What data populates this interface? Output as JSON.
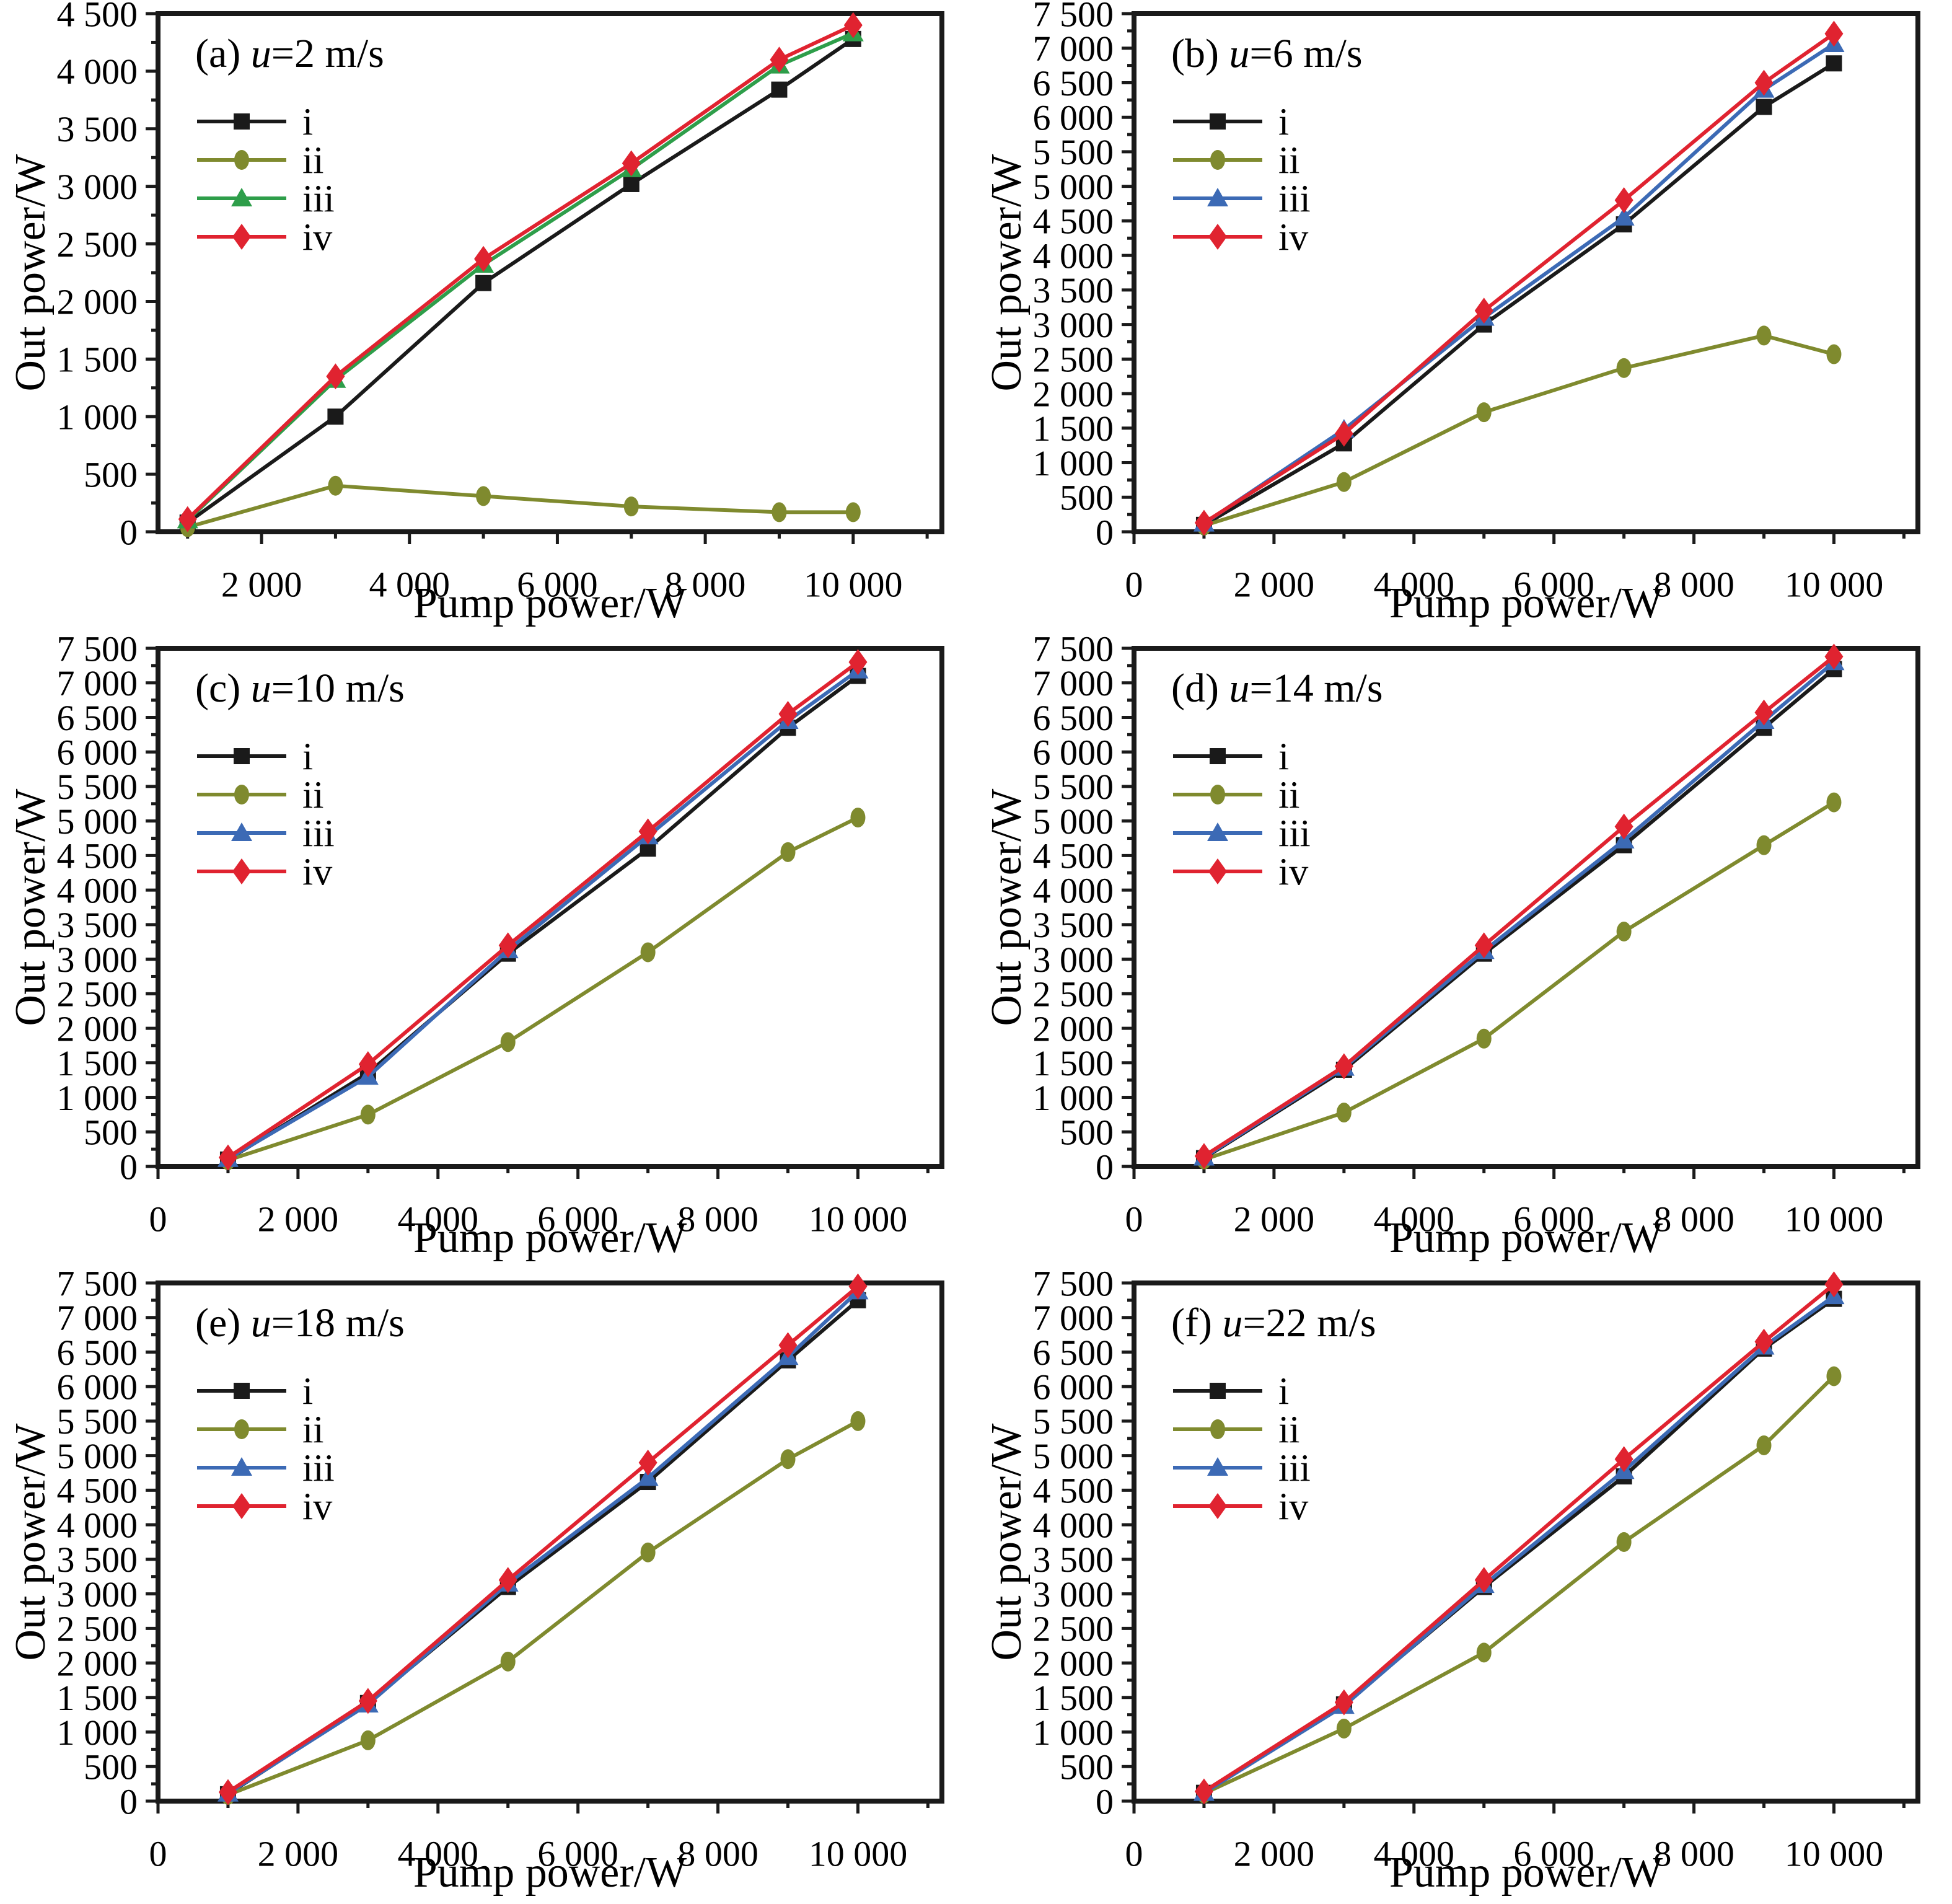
{
  "chart_data": {
    "type": "line",
    "x_label": "Pump power/W",
    "y_label": "Out power/W",
    "x_values": [
      1000,
      3000,
      5000,
      7000,
      9000,
      10000
    ],
    "x_major_tick_step": 2000,
    "x_minor_tick_step": 1000,
    "legend_labels": [
      "i",
      "ii",
      "iii",
      "iv"
    ],
    "grid": false,
    "legend_position": "top-left-inside",
    "panels": [
      {
        "id": "a",
        "label": "(a)",
        "u_var": "u",
        "u_rest": "=2 m/s",
        "y_max": 4500,
        "y_label_step": 500,
        "y_minor_step": 250,
        "x_min": 600,
        "x_max": 11200,
        "show_x_zero": false,
        "series": [
          {
            "name": "i",
            "marker": "square",
            "color": "#1a1a1a",
            "values": [
              80,
              1000,
              2160,
              3020,
              3840,
              4280
            ]
          },
          {
            "name": "ii",
            "marker": "ellipse",
            "color": "#7f8a2e",
            "values": [
              40,
              400,
              310,
              220,
              170,
              170
            ]
          },
          {
            "name": "iii",
            "marker": "triangle",
            "color": "#2e9e4a",
            "values": [
              100,
              1320,
              2320,
              3150,
              4050,
              4330
            ]
          },
          {
            "name": "iv",
            "marker": "diamond",
            "color": "#e02330",
            "values": [
              110,
              1350,
              2370,
              3200,
              4100,
              4400
            ]
          }
        ]
      },
      {
        "id": "b",
        "label": "(b)",
        "u_var": "u",
        "u_rest": "=6 m/s",
        "y_max": 7500,
        "y_label_step": 500,
        "y_minor_step": 250,
        "x_min": 0,
        "x_max": 11200,
        "show_x_zero": true,
        "series": [
          {
            "name": "i",
            "marker": "square",
            "color": "#1a1a1a",
            "values": [
              100,
              1280,
              3000,
              4450,
              6150,
              6780
            ]
          },
          {
            "name": "ii",
            "marker": "ellipse",
            "color": "#7f8a2e",
            "values": [
              90,
              720,
              1730,
              2370,
              2840,
              2570
            ]
          },
          {
            "name": "iii",
            "marker": "triangle",
            "color": "#3c6ab5",
            "values": [
              120,
              1480,
              3100,
              4550,
              6400,
              7060
            ]
          },
          {
            "name": "iv",
            "marker": "diamond",
            "color": "#e02330",
            "values": [
              130,
              1420,
              3200,
              4800,
              6500,
              7210
            ]
          }
        ]
      },
      {
        "id": "c",
        "label": "(c)",
        "u_var": "u",
        "u_rest": "=10 m/s",
        "y_max": 7500,
        "y_label_step": 500,
        "y_minor_step": 250,
        "x_min": 0,
        "x_max": 11200,
        "show_x_zero": true,
        "series": [
          {
            "name": "i",
            "marker": "square",
            "color": "#1a1a1a",
            "values": [
              100,
              1350,
              3080,
              4600,
              6350,
              7100
            ]
          },
          {
            "name": "ii",
            "marker": "ellipse",
            "color": "#7f8a2e",
            "values": [
              90,
              750,
              1800,
              3100,
              4550,
              5050
            ]
          },
          {
            "name": "iii",
            "marker": "triangle",
            "color": "#3c6ab5",
            "values": [
              110,
              1300,
              3130,
              4780,
              6450,
              7180
            ]
          },
          {
            "name": "iv",
            "marker": "diamond",
            "color": "#e02330",
            "values": [
              130,
              1480,
              3200,
              4850,
              6550,
              7300
            ]
          }
        ]
      },
      {
        "id": "d",
        "label": "(d)",
        "u_var": "u",
        "u_rest": "=14 m/s",
        "y_max": 7500,
        "y_label_step": 500,
        "y_minor_step": 250,
        "x_min": 0,
        "x_max": 11200,
        "show_x_zero": true,
        "series": [
          {
            "name": "i",
            "marker": "square",
            "color": "#1a1a1a",
            "values": [
              120,
              1400,
              3080,
              4650,
              6350,
              7200
            ]
          },
          {
            "name": "ii",
            "marker": "ellipse",
            "color": "#7f8a2e",
            "values": [
              100,
              780,
              1850,
              3400,
              4650,
              5270
            ]
          },
          {
            "name": "iii",
            "marker": "triangle",
            "color": "#3c6ab5",
            "values": [
              130,
              1430,
              3120,
              4720,
              6450,
              7300
            ]
          },
          {
            "name": "iv",
            "marker": "diamond",
            "color": "#e02330",
            "values": [
              150,
              1450,
              3200,
              4920,
              6570,
              7380
            ]
          }
        ]
      },
      {
        "id": "e",
        "label": "(e)",
        "u_var": "u",
        "u_rest": "=18 m/s",
        "y_max": 7500,
        "y_label_step": 500,
        "y_minor_step": 250,
        "x_min": 0,
        "x_max": 11200,
        "show_x_zero": true,
        "series": [
          {
            "name": "i",
            "marker": "square",
            "color": "#1a1a1a",
            "values": [
              100,
              1420,
              3100,
              4620,
              6380,
              7250
            ]
          },
          {
            "name": "ii",
            "marker": "ellipse",
            "color": "#7f8a2e",
            "values": [
              90,
              880,
              2020,
              3600,
              4950,
              5500
            ]
          },
          {
            "name": "iii",
            "marker": "triangle",
            "color": "#3c6ab5",
            "values": [
              110,
              1400,
              3150,
              4680,
              6430,
              7380
            ]
          },
          {
            "name": "iv",
            "marker": "diamond",
            "color": "#e02330",
            "values": [
              130,
              1450,
              3200,
              4900,
              6600,
              7450
            ]
          }
        ]
      },
      {
        "id": "f",
        "label": "(f)",
        "u_var": "u",
        "u_rest": "=22 m/s",
        "y_max": 7500,
        "y_label_step": 500,
        "y_minor_step": 250,
        "x_min": 0,
        "x_max": 11200,
        "show_x_zero": true,
        "series": [
          {
            "name": "i",
            "marker": "square",
            "color": "#1a1a1a",
            "values": [
              120,
              1400,
              3100,
              4700,
              6550,
              7270
            ]
          },
          {
            "name": "ii",
            "marker": "ellipse",
            "color": "#7f8a2e",
            "values": [
              110,
              1050,
              2150,
              3750,
              5150,
              6150
            ]
          },
          {
            "name": "iii",
            "marker": "triangle",
            "color": "#3c6ab5",
            "values": [
              120,
              1380,
              3130,
              4780,
              6580,
              7310
            ]
          },
          {
            "name": "iv",
            "marker": "diamond",
            "color": "#e02330",
            "values": [
              140,
              1430,
              3200,
              4950,
              6650,
              7480
            ]
          }
        ]
      }
    ]
  },
  "colors": {
    "axis": "#1a1a1a",
    "text": "#000000",
    "series_black": "#1a1a1a",
    "series_olive": "#7f8a2e",
    "series_green": "#2e9e4a",
    "series_blue": "#3c6ab5",
    "series_red": "#e02330"
  }
}
